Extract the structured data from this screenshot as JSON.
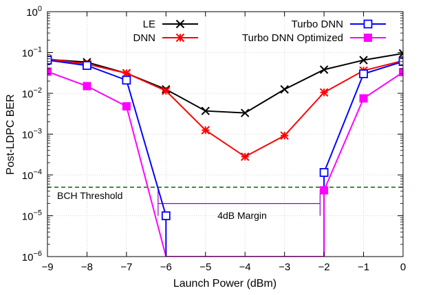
{
  "chart_data": {
    "type": "line",
    "xlabel": "Launch Power (dBm)",
    "ylabel": "Post-LDPC BER",
    "xlim": [
      -9,
      0
    ],
    "ylim": [
      1e-06,
      1
    ],
    "yscale": "log",
    "grid": true,
    "legend_position": "top",
    "x_ticks": [
      "−9",
      "−8",
      "−7",
      "−6",
      "−5",
      "−4",
      "−3",
      "−2",
      "−1",
      "0"
    ],
    "y_ticks": [
      {
        "base": "10",
        "exp": "0"
      },
      {
        "base": "10",
        "exp": "−1"
      },
      {
        "base": "10",
        "exp": "−2"
      },
      {
        "base": "10",
        "exp": "−3"
      },
      {
        "base": "10",
        "exp": "−4"
      },
      {
        "base": "10",
        "exp": "−5"
      },
      {
        "base": "10",
        "exp": "−6"
      }
    ],
    "series": [
      {
        "name": "LE",
        "color": "#000000",
        "marker": "x",
        "x": [
          -9,
          -8,
          -7,
          -6,
          -5,
          -4,
          -3,
          -2,
          -1,
          0
        ],
        "y": [
          0.068,
          0.058,
          0.031,
          0.0125,
          0.0037,
          0.0033,
          0.0125,
          0.038,
          0.065,
          0.095
        ]
      },
      {
        "name": "DNN",
        "color": "#ff0000",
        "marker": "star",
        "x": [
          -9,
          -8,
          -7,
          -6,
          -5,
          -4,
          -3,
          -2,
          -1,
          0
        ],
        "y": [
          0.07,
          0.052,
          0.031,
          0.0115,
          0.00125,
          0.00028,
          0.00092,
          0.0105,
          0.036,
          0.063
        ]
      },
      {
        "name": "Turbo DNN",
        "color": "#0000ff",
        "marker": "open-square",
        "x": [
          -9,
          -8,
          -7,
          -6,
          -6,
          -2,
          -2,
          -1,
          0
        ],
        "y": [
          0.065,
          0.048,
          0.021,
          1e-05,
          1e-06,
          1e-06,
          0.000115,
          0.03,
          0.06
        ]
      },
      {
        "name": "Turbo DNN Optimized",
        "color": "#ff00ff",
        "marker": "filled-square",
        "x": [
          -9,
          -8,
          -7,
          -6,
          -2,
          -2,
          -1,
          0
        ],
        "y": [
          0.034,
          0.015,
          0.0048,
          1e-06,
          1e-06,
          4.2e-05,
          0.0075,
          0.033
        ]
      }
    ],
    "annotations": {
      "threshold": {
        "label": "BCH Threshold",
        "y": 5e-05,
        "color": "#006400"
      },
      "margin": {
        "label": "4dB Margin",
        "x_from": -6.2,
        "x_to": -2.1,
        "y": 2e-05,
        "color": "#9400d3"
      }
    }
  }
}
